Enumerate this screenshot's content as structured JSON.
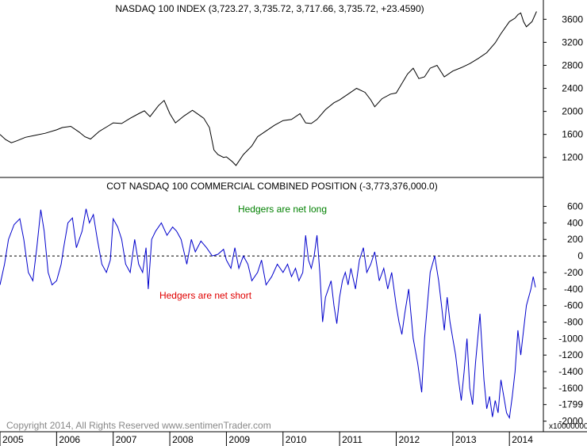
{
  "chart_data": [
    {
      "type": "line",
      "title": "NASDAQ 100 INDEX (3,723.27, 3,735.72, 3,717.66, 3,735.72, +23.4590)",
      "ylim": [
        880,
        3880
      ],
      "yticks": [
        1200,
        1600,
        2000,
        2400,
        2800,
        3200,
        3600
      ],
      "line_color": "#000000",
      "series": [
        {
          "values_by_year": [
            [
              2005.0,
              1600
            ],
            [
              2005.1,
              1510
            ],
            [
              2005.2,
              1455
            ],
            [
              2005.3,
              1490
            ],
            [
              2005.45,
              1550
            ],
            [
              2005.6,
              1580
            ],
            [
              2005.8,
              1620
            ],
            [
              2006.0,
              1680
            ],
            [
              2006.1,
              1720
            ],
            [
              2006.25,
              1740
            ],
            [
              2006.4,
              1640
            ],
            [
              2006.5,
              1560
            ],
            [
              2006.6,
              1520
            ],
            [
              2006.75,
              1650
            ],
            [
              2006.9,
              1740
            ],
            [
              2007.0,
              1800
            ],
            [
              2007.15,
              1790
            ],
            [
              2007.3,
              1880
            ],
            [
              2007.45,
              1960
            ],
            [
              2007.55,
              2010
            ],
            [
              2007.65,
              1910
            ],
            [
              2007.8,
              2100
            ],
            [
              2007.9,
              2190
            ],
            [
              2008.0,
              1960
            ],
            [
              2008.1,
              1800
            ],
            [
              2008.25,
              1920
            ],
            [
              2008.4,
              2020
            ],
            [
              2008.5,
              1950
            ],
            [
              2008.6,
              1880
            ],
            [
              2008.7,
              1720
            ],
            [
              2008.78,
              1330
            ],
            [
              2008.85,
              1250
            ],
            [
              2008.95,
              1200
            ],
            [
              2009.0,
              1210
            ],
            [
              2009.1,
              1130
            ],
            [
              2009.17,
              1060
            ],
            [
              2009.3,
              1250
            ],
            [
              2009.45,
              1400
            ],
            [
              2009.55,
              1560
            ],
            [
              2009.7,
              1660
            ],
            [
              2009.85,
              1760
            ],
            [
              2010.0,
              1840
            ],
            [
              2010.15,
              1860
            ],
            [
              2010.3,
              1960
            ],
            [
              2010.4,
              1800
            ],
            [
              2010.5,
              1790
            ],
            [
              2010.6,
              1860
            ],
            [
              2010.75,
              2030
            ],
            [
              2010.9,
              2150
            ],
            [
              2011.0,
              2200
            ],
            [
              2011.15,
              2300
            ],
            [
              2011.3,
              2400
            ],
            [
              2011.45,
              2330
            ],
            [
              2011.55,
              2200
            ],
            [
              2011.62,
              2080
            ],
            [
              2011.75,
              2220
            ],
            [
              2011.9,
              2300
            ],
            [
              2012.0,
              2320
            ],
            [
              2012.2,
              2650
            ],
            [
              2012.3,
              2750
            ],
            [
              2012.4,
              2570
            ],
            [
              2012.5,
              2600
            ],
            [
              2012.6,
              2750
            ],
            [
              2012.72,
              2800
            ],
            [
              2012.85,
              2600
            ],
            [
              2013.0,
              2700
            ],
            [
              2013.15,
              2760
            ],
            [
              2013.3,
              2830
            ],
            [
              2013.45,
              2920
            ],
            [
              2013.6,
              3020
            ],
            [
              2013.75,
              3190
            ],
            [
              2013.85,
              3350
            ],
            [
              2014.0,
              3560
            ],
            [
              2014.1,
              3620
            ],
            [
              2014.15,
              3680
            ],
            [
              2014.2,
              3710
            ],
            [
              2014.25,
              3560
            ],
            [
              2014.3,
              3470
            ],
            [
              2014.4,
              3560
            ],
            [
              2014.48,
              3736
            ]
          ]
        }
      ]
    },
    {
      "type": "line",
      "title": "COT NASDAQ 100 COMMERCIAL COMBINED POSITION (-3,773,376,000.0)",
      "ylim": [
        -2080,
        720
      ],
      "yticks": [
        600,
        400,
        200,
        0,
        -200,
        -400,
        -600,
        -800,
        -1000,
        -1200,
        -1400,
        -1600,
        -1799,
        -2000
      ],
      "scale_label": "x10000000",
      "line_color": "#0000cc",
      "zero_line": true,
      "annotations": [
        {
          "text": "Hedgers are net long",
          "color": "#008000"
        },
        {
          "text": "Hedgers are net short",
          "color": "#e00000"
        }
      ],
      "series": [
        {
          "values_by_year": [
            [
              2005.0,
              -350
            ],
            [
              2005.08,
              -100
            ],
            [
              2005.15,
              200
            ],
            [
              2005.25,
              380
            ],
            [
              2005.35,
              450
            ],
            [
              2005.42,
              200
            ],
            [
              2005.5,
              -200
            ],
            [
              2005.58,
              -300
            ],
            [
              2005.65,
              100
            ],
            [
              2005.72,
              560
            ],
            [
              2005.78,
              300
            ],
            [
              2005.85,
              -200
            ],
            [
              2005.92,
              -350
            ],
            [
              2006.0,
              -300
            ],
            [
              2006.08,
              -100
            ],
            [
              2006.12,
              80
            ],
            [
              2006.2,
              400
            ],
            [
              2006.28,
              460
            ],
            [
              2006.35,
              100
            ],
            [
              2006.45,
              300
            ],
            [
              2006.52,
              570
            ],
            [
              2006.58,
              400
            ],
            [
              2006.65,
              500
            ],
            [
              2006.72,
              200
            ],
            [
              2006.8,
              -100
            ],
            [
              2006.88,
              -200
            ],
            [
              2006.95,
              -50
            ],
            [
              2007.0,
              450
            ],
            [
              2007.08,
              350
            ],
            [
              2007.15,
              200
            ],
            [
              2007.22,
              -100
            ],
            [
              2007.3,
              -200
            ],
            [
              2007.38,
              200
            ],
            [
              2007.45,
              -100
            ],
            [
              2007.52,
              -200
            ],
            [
              2007.58,
              100
            ],
            [
              2007.62,
              -400
            ],
            [
              2007.68,
              200
            ],
            [
              2007.75,
              300
            ],
            [
              2007.85,
              400
            ],
            [
              2007.95,
              250
            ],
            [
              2008.05,
              350
            ],
            [
              2008.12,
              300
            ],
            [
              2008.2,
              200
            ],
            [
              2008.3,
              -100
            ],
            [
              2008.38,
              200
            ],
            [
              2008.45,
              50
            ],
            [
              2008.55,
              180
            ],
            [
              2008.65,
              100
            ],
            [
              2008.75,
              0
            ],
            [
              2008.85,
              20
            ],
            [
              2008.95,
              80
            ],
            [
              2009.0,
              -50
            ],
            [
              2009.08,
              -150
            ],
            [
              2009.15,
              100
            ],
            [
              2009.22,
              -150
            ],
            [
              2009.3,
              0
            ],
            [
              2009.38,
              -100
            ],
            [
              2009.45,
              -300
            ],
            [
              2009.55,
              -200
            ],
            [
              2009.62,
              -50
            ],
            [
              2009.7,
              -350
            ],
            [
              2009.8,
              -250
            ],
            [
              2009.9,
              -100
            ],
            [
              2010.0,
              -200
            ],
            [
              2010.08,
              -100
            ],
            [
              2010.15,
              -250
            ],
            [
              2010.22,
              -150
            ],
            [
              2010.28,
              -300
            ],
            [
              2010.35,
              -200
            ],
            [
              2010.4,
              250
            ],
            [
              2010.45,
              -50
            ],
            [
              2010.5,
              -150
            ],
            [
              2010.55,
              0
            ],
            [
              2010.6,
              250
            ],
            [
              2010.65,
              -200
            ],
            [
              2010.7,
              -800
            ],
            [
              2010.75,
              -500
            ],
            [
              2010.8,
              -400
            ],
            [
              2010.85,
              -300
            ],
            [
              2010.9,
              -600
            ],
            [
              2010.95,
              -820
            ],
            [
              2011.0,
              -500
            ],
            [
              2011.05,
              -300
            ],
            [
              2011.1,
              -200
            ],
            [
              2011.15,
              -350
            ],
            [
              2011.2,
              -150
            ],
            [
              2011.28,
              -400
            ],
            [
              2011.35,
              -50
            ],
            [
              2011.42,
              100
            ],
            [
              2011.48,
              -200
            ],
            [
              2011.55,
              -100
            ],
            [
              2011.62,
              50
            ],
            [
              2011.7,
              -300
            ],
            [
              2011.78,
              -150
            ],
            [
              2011.85,
              -400
            ],
            [
              2011.92,
              -200
            ],
            [
              2012.0,
              -600
            ],
            [
              2012.05,
              -800
            ],
            [
              2012.1,
              -950
            ],
            [
              2012.15,
              -700
            ],
            [
              2012.22,
              -400
            ],
            [
              2012.3,
              -1000
            ],
            [
              2012.38,
              -1300
            ],
            [
              2012.45,
              -1650
            ],
            [
              2012.5,
              -1000
            ],
            [
              2012.55,
              -600
            ],
            [
              2012.6,
              -200
            ],
            [
              2012.68,
              0
            ],
            [
              2012.75,
              -300
            ],
            [
              2012.8,
              -600
            ],
            [
              2012.85,
              -900
            ],
            [
              2012.9,
              -500
            ],
            [
              2012.95,
              -800
            ],
            [
              2013.0,
              -1000
            ],
            [
              2013.05,
              -1200
            ],
            [
              2013.1,
              -1500
            ],
            [
              2013.15,
              -1750
            ],
            [
              2013.2,
              -1400
            ],
            [
              2013.25,
              -1000
            ],
            [
              2013.3,
              -1600
            ],
            [
              2013.35,
              -1800
            ],
            [
              2013.4,
              -1300
            ],
            [
              2013.48,
              -700
            ],
            [
              2013.55,
              -1500
            ],
            [
              2013.6,
              -1850
            ],
            [
              2013.65,
              -1700
            ],
            [
              2013.7,
              -1950
            ],
            [
              2013.75,
              -1750
            ],
            [
              2013.8,
              -1900
            ],
            [
              2013.85,
              -1500
            ],
            [
              2013.9,
              -1700
            ],
            [
              2013.95,
              -1900
            ],
            [
              2014.0,
              -1960
            ],
            [
              2014.05,
              -1700
            ],
            [
              2014.1,
              -1400
            ],
            [
              2014.15,
              -900
            ],
            [
              2014.2,
              -1200
            ],
            [
              2014.25,
              -900
            ],
            [
              2014.3,
              -600
            ],
            [
              2014.38,
              -400
            ],
            [
              2014.42,
              -250
            ],
            [
              2014.46,
              -380
            ]
          ]
        }
      ]
    }
  ],
  "x_axis": {
    "years": [
      "2005",
      "2006",
      "2007",
      "2008",
      "2009",
      "2010",
      "2011",
      "2012",
      "2013",
      "2014"
    ]
  },
  "copyright": "Copyright 2014, All Rights Reserved  www.sentimenTrader.com"
}
